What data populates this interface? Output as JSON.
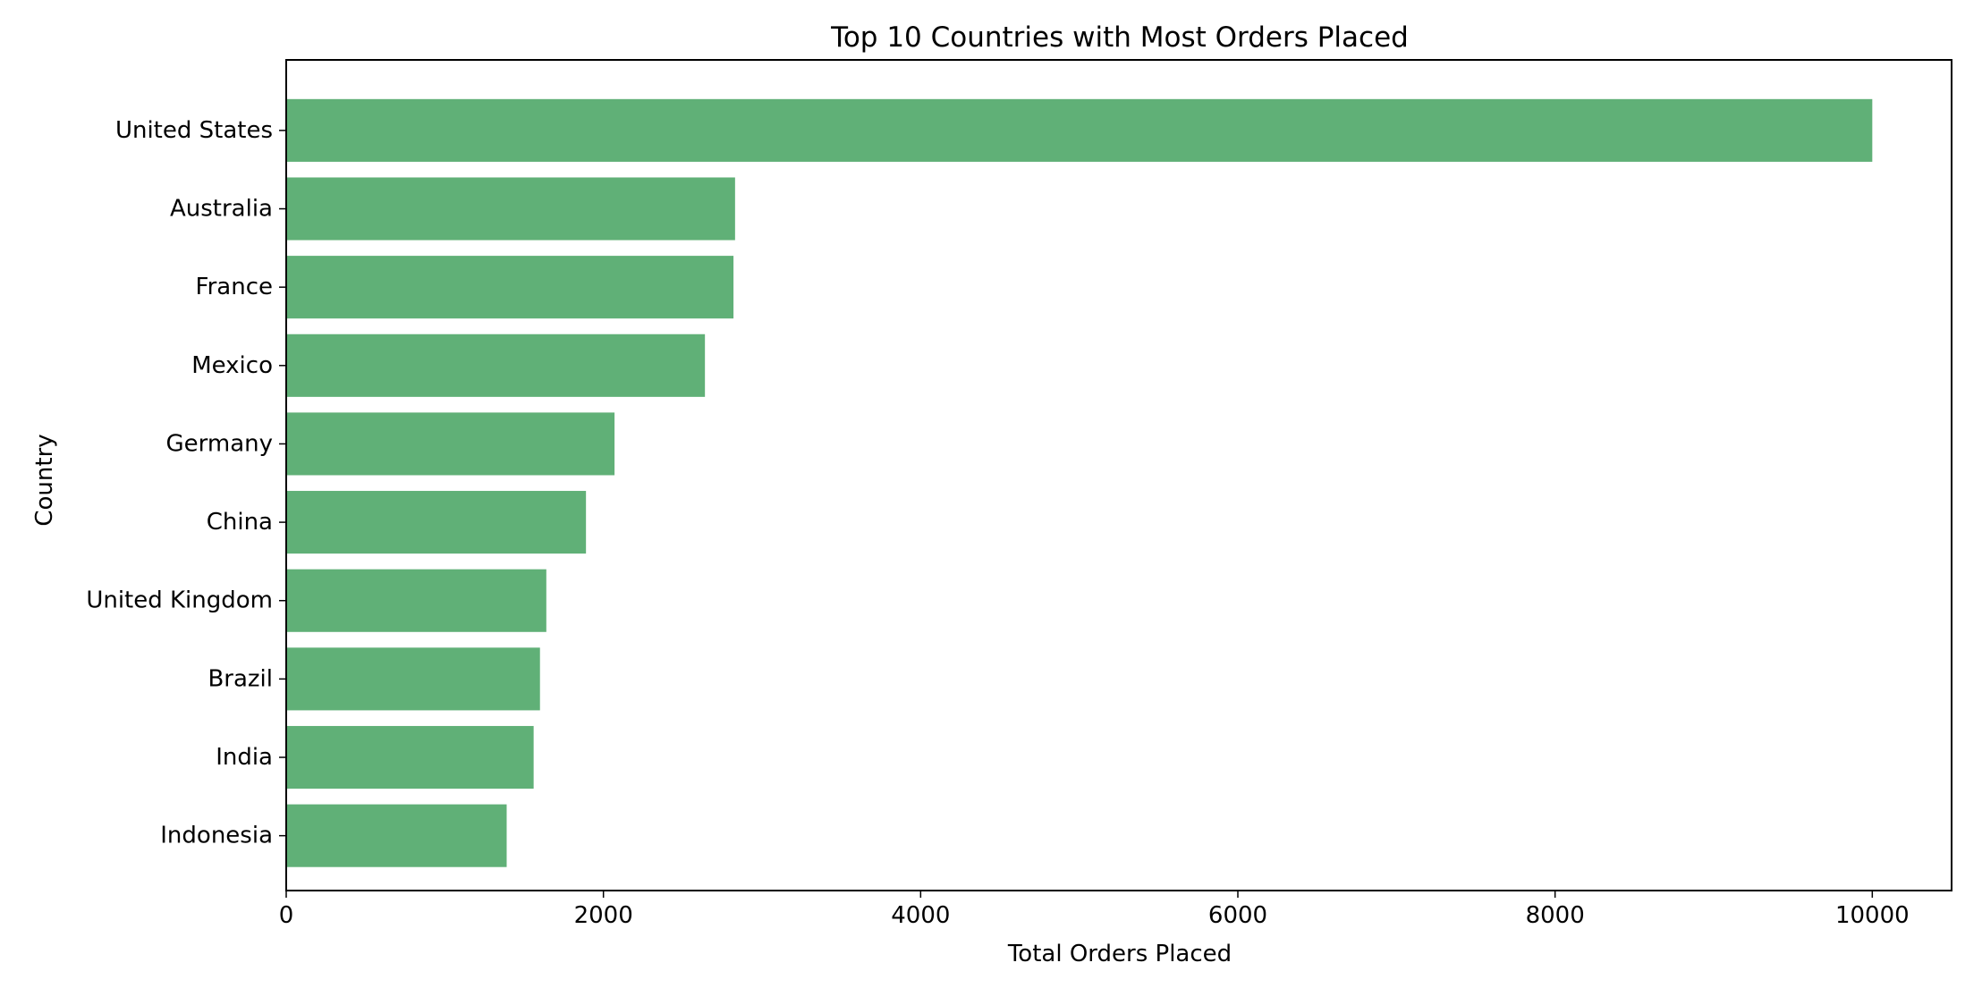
{
  "chart_data": {
    "type": "bar",
    "orientation": "horizontal",
    "title": "Top 10 Countries with Most Orders Placed",
    "xlabel": "Total Orders Placed",
    "ylabel": "Country",
    "categories": [
      "United States",
      "Australia",
      "France",
      "Mexico",
      "Germany",
      "China",
      "United Kingdom",
      "Brazil",
      "India",
      "Indonesia"
    ],
    "values": [
      10000,
      2830,
      2820,
      2640,
      2070,
      1890,
      1640,
      1600,
      1560,
      1390
    ],
    "xlim": [
      0,
      10500
    ],
    "xticks": [
      0,
      2000,
      4000,
      6000,
      8000,
      10000
    ],
    "bar_color": "#60b077",
    "grid": false,
    "legend": "none"
  }
}
